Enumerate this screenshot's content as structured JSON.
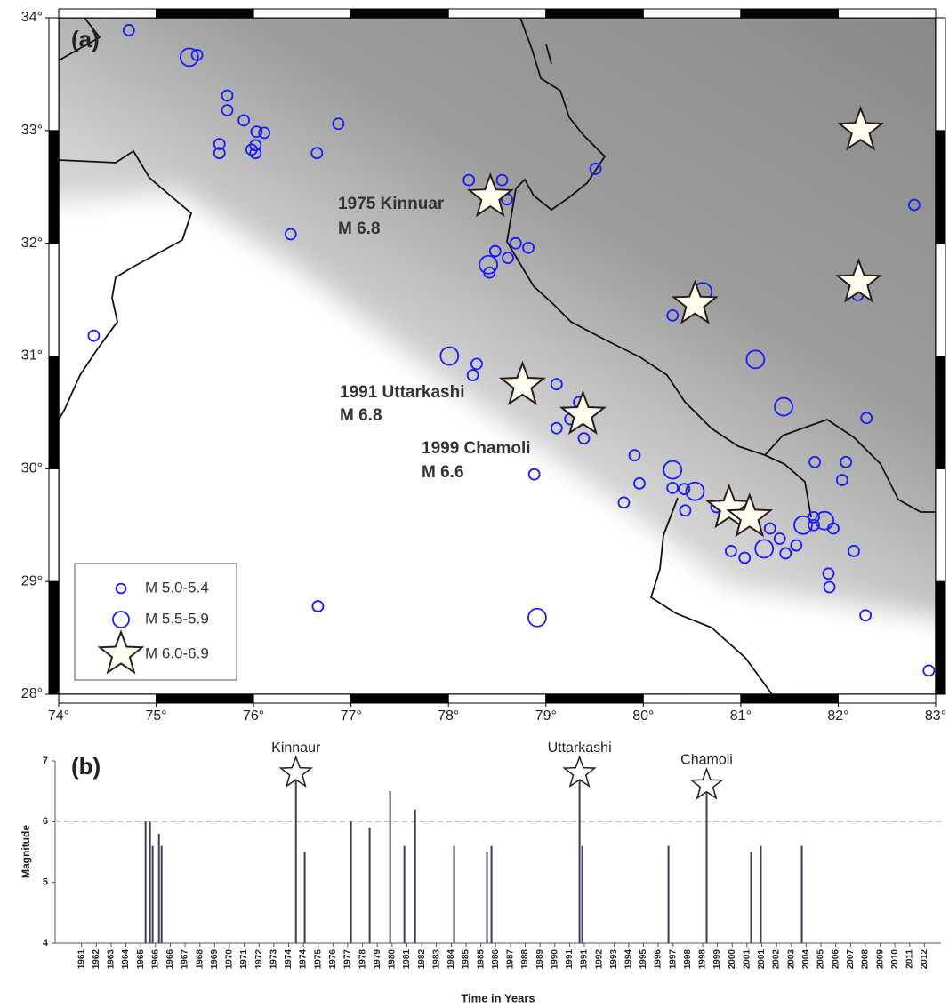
{
  "chart_data": [
    {
      "type": "scatter",
      "panel": "(a)",
      "xlim": [
        74,
        83
      ],
      "ylim": [
        28,
        34
      ],
      "xticks": [
        {
          "value": 74,
          "label": "74°"
        },
        {
          "value": 75,
          "label": "75°"
        },
        {
          "value": 76,
          "label": "76°"
        },
        {
          "value": 77,
          "label": "77°"
        },
        {
          "value": 78,
          "label": "78°"
        },
        {
          "value": 79,
          "label": "79°"
        },
        {
          "value": 80,
          "label": "80°"
        },
        {
          "value": 81,
          "label": "81°"
        },
        {
          "value": 82,
          "label": "82°"
        },
        {
          "value": 83,
          "label": "83°"
        }
      ],
      "yticks": [
        {
          "value": 28,
          "label": "28°"
        },
        {
          "value": 29,
          "label": "29°"
        },
        {
          "value": 30,
          "label": "30°"
        },
        {
          "value": 31,
          "label": "31°"
        },
        {
          "value": 32,
          "label": "32°"
        },
        {
          "value": 33,
          "label": "33°"
        },
        {
          "value": 34,
          "label": "34°"
        }
      ],
      "series": [
        {
          "name": "M 5.0-5.4",
          "color": "#1a1aff",
          "marker": "circle",
          "x": [
            74.72,
            75.42,
            75.73,
            75.73,
            75.9,
            76.03,
            76.11,
            75.65,
            75.65,
            75.98,
            76.02,
            76.02,
            76.87,
            76.65,
            76.38,
            74.36,
            76.66,
            78.21,
            78.55,
            78.6,
            79.51,
            78.48,
            78.61,
            78.69,
            78.82,
            78.42,
            78.29,
            78.25,
            79.11,
            79.34,
            79.11,
            79.25,
            79.39,
            78.88,
            79.91,
            79.96,
            79.8,
            80.3,
            80.42,
            80.43,
            80.3,
            82.2,
            82.29,
            82.78,
            81.76,
            82.08,
            82.04,
            81.75,
            81.75,
            81.95,
            81.57,
            81.4,
            81.3,
            81.46,
            81.04,
            80.9,
            81.9,
            81.91,
            82.16,
            82.28,
            82.93,
            80.75,
            80.83
          ],
          "values": [
            33.89,
            33.67,
            33.31,
            33.18,
            33.09,
            32.99,
            32.98,
            32.88,
            32.8,
            32.83,
            32.87,
            32.8,
            33.06,
            32.8,
            32.08,
            31.18,
            28.78,
            32.56,
            32.56,
            32.39,
            32.66,
            31.93,
            31.87,
            32.0,
            31.96,
            31.74,
            30.93,
            30.83,
            30.75,
            30.59,
            30.36,
            30.44,
            30.27,
            29.95,
            30.12,
            29.87,
            29.7,
            29.83,
            29.82,
            29.63,
            31.36,
            31.54,
            30.45,
            32.34,
            30.06,
            30.06,
            29.9,
            29.57,
            29.5,
            29.47,
            29.32,
            29.38,
            29.47,
            29.25,
            29.21,
            29.27,
            29.07,
            28.95,
            29.27,
            28.7,
            28.21,
            29.66,
            29.6
          ]
        },
        {
          "name": "M 5.5-5.9",
          "color": "#1a1aff",
          "marker": "circle",
          "x": [
            75.34,
            78.01,
            78.41,
            80.3,
            80.53,
            81.15,
            81.44,
            80.61,
            81.24,
            81.64,
            81.86,
            78.91
          ],
          "values": [
            33.65,
            31.0,
            31.81,
            29.99,
            29.8,
            30.97,
            30.55,
            31.57,
            29.29,
            29.5,
            29.54,
            28.68
          ]
        },
        {
          "name": "M 6.0-6.9",
          "color": "#fffff0",
          "marker": "star",
          "x": [
            78.43,
            78.76,
            79.38,
            82.23,
            82.21,
            80.53,
            80.88,
            81.09
          ],
          "values": [
            32.41,
            30.74,
            30.48,
            33.0,
            31.65,
            31.46,
            29.65,
            29.57
          ]
        }
      ],
      "annotations": [
        [
          "1975 Kinnuar",
          "M 6.8"
        ],
        [
          "1991 Uttarkashi",
          "M 6.8"
        ],
        [
          "1999 Chamoli",
          "M 6.6"
        ]
      ]
    },
    {
      "type": "stem",
      "panel": "(b)",
      "ylabel": "Magnitude",
      "xlabel": "Time in Years",
      "color": "#3c3c5c",
      "x": [
        1964.87,
        1965.14,
        1965.3,
        1965.68,
        1965.84,
        1973.97,
        1974.5,
        1977.3,
        1978.43,
        1979.67,
        1980.53,
        1981.18,
        1983.54,
        1985.53,
        1985.8,
        1991.13,
        1991.29,
        1996.51,
        1998.82,
        2001.51,
        2002.1,
        2004.58
      ],
      "values": [
        6.0,
        6.0,
        5.6,
        5.8,
        5.6,
        6.8,
        5.5,
        6.0,
        5.9,
        6.5,
        5.6,
        6.2,
        5.6,
        5.5,
        5.6,
        6.8,
        5.6,
        5.6,
        6.6,
        5.5,
        5.6,
        5.6
      ],
      "event_labels": [
        null,
        null,
        null,
        null,
        null,
        "Kinnaur",
        null,
        null,
        null,
        null,
        null,
        null,
        null,
        null,
        null,
        "Uttarkashi",
        null,
        null,
        "Chamoli",
        null,
        null,
        null
      ],
      "xlim": [
        1959.4,
        2013.0
      ],
      "ylim": [
        4,
        7
      ],
      "yticks": [
        4,
        5,
        6,
        7
      ],
      "reference_line": 6,
      "xticks": [
        {
          "value": 1961.0,
          "label": "1961"
        },
        {
          "value": 1961.89,
          "label": "1962"
        },
        {
          "value": 1962.79,
          "label": "1963"
        },
        {
          "value": 1963.68,
          "label": "1964"
        },
        {
          "value": 1964.58,
          "label": "1965"
        },
        {
          "value": 1965.47,
          "label": "1966"
        },
        {
          "value": 1966.37,
          "label": "1966"
        },
        {
          "value": 1967.26,
          "label": "1967"
        },
        {
          "value": 1968.16,
          "label": "1968"
        },
        {
          "value": 1969.05,
          "label": "1969"
        },
        {
          "value": 1969.95,
          "label": "1970"
        },
        {
          "value": 1970.84,
          "label": "1971"
        },
        {
          "value": 1971.74,
          "label": "1972"
        },
        {
          "value": 1972.63,
          "label": "1973"
        },
        {
          "value": 1973.53,
          "label": "1974"
        },
        {
          "value": 1974.42,
          "label": "1974"
        },
        {
          "value": 1975.32,
          "label": "1975"
        },
        {
          "value": 1976.21,
          "label": "1976"
        },
        {
          "value": 1977.1,
          "label": "1977"
        },
        {
          "value": 1978.0,
          "label": "1978"
        },
        {
          "value": 1978.89,
          "label": "1979"
        },
        {
          "value": 1979.79,
          "label": "1980"
        },
        {
          "value": 1980.68,
          "label": "1981"
        },
        {
          "value": 1981.58,
          "label": "1982"
        },
        {
          "value": 1982.47,
          "label": "1983"
        },
        {
          "value": 1983.37,
          "label": "1984"
        },
        {
          "value": 1984.26,
          "label": "1985"
        },
        {
          "value": 1985.16,
          "label": "1985"
        },
        {
          "value": 1986.05,
          "label": "1986"
        },
        {
          "value": 1986.95,
          "label": "1987"
        },
        {
          "value": 1987.84,
          "label": "1988"
        },
        {
          "value": 1988.74,
          "label": "1989"
        },
        {
          "value": 1989.63,
          "label": "1990"
        },
        {
          "value": 1990.53,
          "label": "1991"
        },
        {
          "value": 1991.42,
          "label": "1991"
        },
        {
          "value": 1992.32,
          "label": "1992"
        },
        {
          "value": 1993.21,
          "label": "1993"
        },
        {
          "value": 1994.1,
          "label": "1994"
        },
        {
          "value": 1995.0,
          "label": "1995"
        },
        {
          "value": 1995.89,
          "label": "1996"
        },
        {
          "value": 1996.79,
          "label": "1997"
        },
        {
          "value": 1997.68,
          "label": "1998"
        },
        {
          "value": 1998.58,
          "label": "1998"
        },
        {
          "value": 1999.47,
          "label": "1999"
        },
        {
          "value": 2000.37,
          "label": "2000"
        },
        {
          "value": 2001.26,
          "label": "2001"
        },
        {
          "value": 2002.16,
          "label": "2001"
        },
        {
          "value": 2003.05,
          "label": "2002"
        },
        {
          "value": 2003.95,
          "label": "2003"
        },
        {
          "value": 2004.84,
          "label": "2004"
        },
        {
          "value": 2005.74,
          "label": "2005"
        },
        {
          "value": 2006.63,
          "label": "2006"
        },
        {
          "value": 2007.53,
          "label": "2007"
        },
        {
          "value": 2008.42,
          "label": "2008"
        },
        {
          "value": 2009.32,
          "label": "2009"
        },
        {
          "value": 2010.21,
          "label": "2010"
        },
        {
          "value": 2011.11,
          "label": "2011"
        },
        {
          "value": 2012.0,
          "label": "2012"
        }
      ]
    }
  ]
}
